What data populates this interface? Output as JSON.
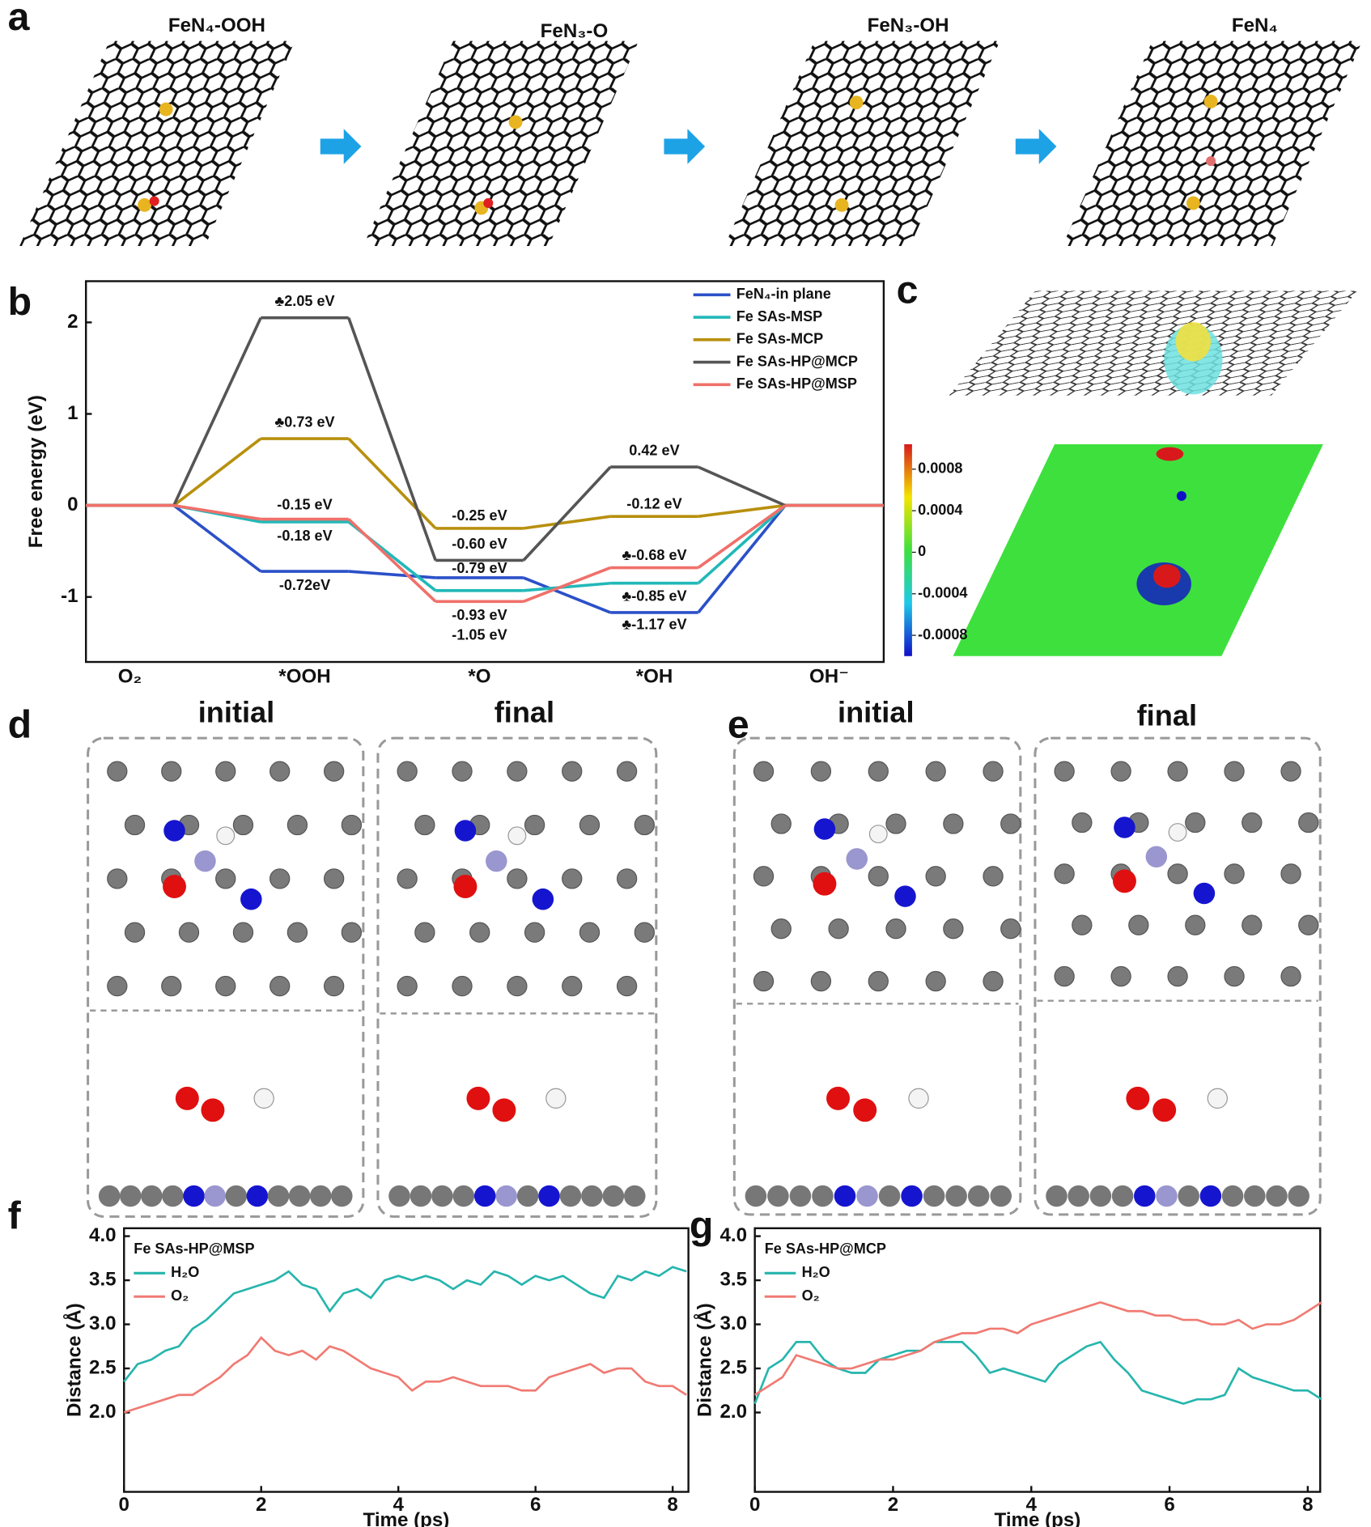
{
  "panel_labels": [
    "a",
    "b",
    "c",
    "d",
    "e",
    "f",
    "g"
  ],
  "panel_a": {
    "titles": [
      "FeN₄-OOH",
      "FeN₃-O",
      "FeN₃-OH",
      "FeN₄"
    ]
  },
  "panel_c": {
    "colorbar": {
      "lim": [
        -0.001,
        0.00104
      ],
      "ticks": [
        0.0008,
        0.0004,
        0,
        -0.0004,
        -0.0008
      ]
    }
  },
  "panel_d": {
    "headings": [
      "initial",
      "final"
    ]
  },
  "panel_e": {
    "headings": [
      "initial",
      "final"
    ]
  },
  "chart_data": [
    {
      "type": "step",
      "ylabel": "Free energy (eV)",
      "categories": [
        "O₂",
        "*OOH",
        "*O",
        "*OH",
        "OH⁻"
      ],
      "ylim": [
        -1.71,
        2.45
      ],
      "yticks": [
        -1,
        0,
        1,
        2
      ],
      "legend": "upper right",
      "series": [
        {
          "name": "FeN₄-in plane",
          "color": "#2b50c8",
          "values": [
            0,
            -0.72,
            -0.79,
            -1.17,
            0
          ],
          "value_labels": [
            null,
            "-0.72eV",
            "-0.79 eV",
            "♣-1.17 eV",
            null
          ]
        },
        {
          "name": "Fe SAs-MSP",
          "color": "#22b8b8",
          "values": [
            0,
            -0.18,
            -0.93,
            -0.85,
            0
          ],
          "value_labels": [
            null,
            "-0.18 eV",
            "-0.93 eV",
            "♣-0.85 eV",
            null
          ]
        },
        {
          "name": "Fe SAs-MCP",
          "color": "#b8900e",
          "values": [
            0,
            0.73,
            -0.25,
            -0.12,
            0
          ],
          "value_labels": [
            null,
            "♣0.73 eV",
            "-0.25 eV",
            "-0.12 eV",
            null
          ]
        },
        {
          "name": "Fe SAs-HP@MCP",
          "color": "#555555",
          "values": [
            0,
            2.05,
            -0.6,
            0.42,
            0
          ],
          "value_labels": [
            null,
            "♣2.05 eV",
            "-0.60 eV",
            "0.42 eV",
            null
          ]
        },
        {
          "name": "Fe SAs-HP@MSP",
          "color": "#f0706a",
          "values": [
            0,
            -0.15,
            -1.05,
            -0.68,
            0
          ],
          "value_labels": [
            null,
            "-0.15 eV",
            "-1.05 eV",
            "♣-0.68 eV",
            null
          ]
        }
      ]
    },
    {
      "type": "line",
      "xlabel": "Time (ps)",
      "ylabel": "Distance (Å)",
      "legend": "upper left",
      "legend_title": "Fe SAs-HP@MSP",
      "x": [
        0,
        0.2,
        0.4,
        0.6,
        0.8,
        1.0,
        1.2,
        1.4,
        1.6,
        1.8,
        2.0,
        2.2,
        2.4,
        2.6,
        2.8,
        3.0,
        3.2,
        3.4,
        3.6,
        3.8,
        4.0,
        4.2,
        4.4,
        4.6,
        4.8,
        5.0,
        5.2,
        5.4,
        5.6,
        5.8,
        6.0,
        6.2,
        6.4,
        6.6,
        6.8,
        7.0,
        7.2,
        7.4,
        7.6,
        7.8,
        8.0,
        8.2
      ],
      "xlim": [
        0,
        8.23
      ],
      "xticks": [
        0,
        2,
        4,
        6,
        8
      ],
      "ylim": [
        1.1,
        4.09
      ],
      "yticks": [
        {
          "value": 2,
          "label": "2.0"
        },
        2.5,
        {
          "value": 3,
          "label": "3.0"
        },
        3.5,
        {
          "value": 4,
          "label": "4.0"
        }
      ],
      "series": [
        {
          "name": "H₂O",
          "color": "#26b5ad",
          "values": [
            2.35,
            2.55,
            2.6,
            2.7,
            2.75,
            2.95,
            3.05,
            3.2,
            3.35,
            3.4,
            3.45,
            3.5,
            3.6,
            3.45,
            3.4,
            3.15,
            3.35,
            3.4,
            3.3,
            3.5,
            3.55,
            3.5,
            3.55,
            3.5,
            3.4,
            3.5,
            3.45,
            3.6,
            3.55,
            3.45,
            3.55,
            3.5,
            3.55,
            3.45,
            3.35,
            3.3,
            3.55,
            3.5,
            3.6,
            3.55,
            3.65,
            3.6
          ]
        },
        {
          "name": "O₂",
          "color": "#f07a72",
          "values": [
            2.0,
            2.05,
            2.1,
            2.15,
            2.2,
            2.2,
            2.3,
            2.4,
            2.55,
            2.65,
            2.85,
            2.7,
            2.65,
            2.7,
            2.6,
            2.75,
            2.7,
            2.6,
            2.5,
            2.45,
            2.4,
            2.25,
            2.35,
            2.35,
            2.4,
            2.35,
            2.3,
            2.3,
            2.3,
            2.25,
            2.25,
            2.4,
            2.45,
            2.5,
            2.55,
            2.45,
            2.5,
            2.5,
            2.35,
            2.3,
            2.3,
            2.2
          ]
        }
      ]
    },
    {
      "type": "line",
      "xlabel": "Time (ps)",
      "ylabel": "Distance (Å)",
      "legend": "upper left",
      "legend_title": "Fe SAs-HP@MCP",
      "x": [
        0,
        0.2,
        0.4,
        0.6,
        0.8,
        1.0,
        1.2,
        1.4,
        1.6,
        1.8,
        2.0,
        2.2,
        2.4,
        2.6,
        2.8,
        3.0,
        3.2,
        3.4,
        3.6,
        3.8,
        4.0,
        4.2,
        4.4,
        4.6,
        4.8,
        5.0,
        5.2,
        5.4,
        5.6,
        5.8,
        6.0,
        6.2,
        6.4,
        6.6,
        6.8,
        7.0,
        7.2,
        7.4,
        7.6,
        7.8,
        8.0,
        8.2
      ],
      "xlim": [
        0,
        8.18
      ],
      "xticks": [
        0,
        2,
        4,
        6,
        8
      ],
      "ylim": [
        1.1,
        4.09
      ],
      "yticks": [
        {
          "value": 2,
          "label": "2.0"
        },
        2.5,
        {
          "value": 3,
          "label": "3.0"
        },
        3.5,
        {
          "value": 4,
          "label": "4.0"
        }
      ],
      "series": [
        {
          "name": "H₂O",
          "color": "#26b5ad",
          "values": [
            2.1,
            2.5,
            2.6,
            2.8,
            2.8,
            2.6,
            2.5,
            2.45,
            2.45,
            2.6,
            2.65,
            2.7,
            2.7,
            2.8,
            2.8,
            2.8,
            2.65,
            2.45,
            2.5,
            2.45,
            2.4,
            2.35,
            2.55,
            2.65,
            2.75,
            2.8,
            2.6,
            2.45,
            2.25,
            2.2,
            2.15,
            2.1,
            2.15,
            2.15,
            2.2,
            2.5,
            2.4,
            2.35,
            2.3,
            2.25,
            2.25,
            2.15
          ]
        },
        {
          "name": "O₂",
          "color": "#f07a72",
          "values": [
            2.2,
            2.3,
            2.4,
            2.65,
            2.6,
            2.55,
            2.5,
            2.5,
            2.55,
            2.6,
            2.6,
            2.65,
            2.7,
            2.8,
            2.85,
            2.9,
            2.9,
            2.95,
            2.95,
            2.9,
            3.0,
            3.05,
            3.1,
            3.15,
            3.2,
            3.25,
            3.2,
            3.15,
            3.15,
            3.1,
            3.1,
            3.05,
            3.05,
            3.0,
            3.0,
            3.05,
            2.95,
            3.0,
            3.0,
            3.05,
            3.15,
            3.25
          ]
        }
      ]
    }
  ]
}
